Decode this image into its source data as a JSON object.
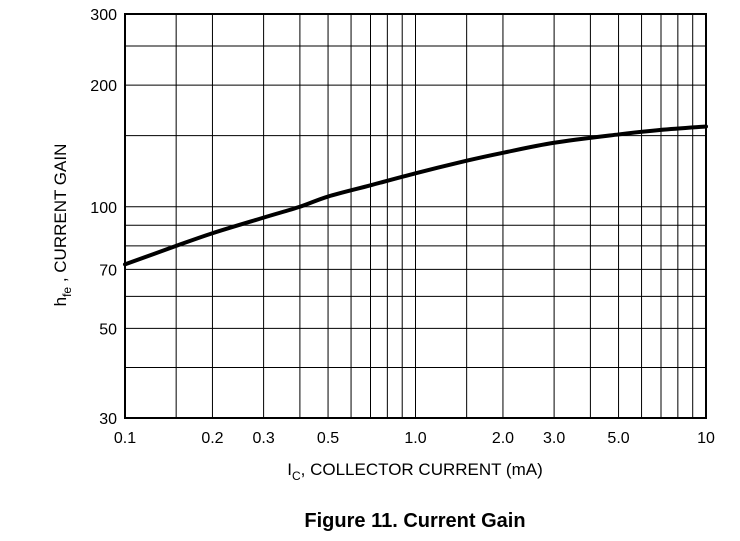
{
  "chart_data": {
    "type": "line",
    "title": "Figure 11. Current Gain",
    "xlabel": {
      "main": "I",
      "sub": "C",
      "rest": ", COLLECTOR CURRENT (mA)"
    },
    "ylabel": {
      "main": "h",
      "sub": "fe",
      "rest": " , CURRENT GAIN"
    },
    "xscale": "log",
    "yscale": "log",
    "xlim": [
      0.1,
      10
    ],
    "ylim": [
      30,
      300
    ],
    "grid": true,
    "x_ticks": [
      {
        "value": 0.1,
        "label": "0.1"
      },
      {
        "value": 0.2,
        "label": "0.2"
      },
      {
        "value": 0.3,
        "label": "0.3"
      },
      {
        "value": 0.5,
        "label": "0.5"
      },
      {
        "value": 1.0,
        "label": "1.0"
      },
      {
        "value": 2.0,
        "label": "2.0"
      },
      {
        "value": 3.0,
        "label": "3.0"
      },
      {
        "value": 5.0,
        "label": "5.0"
      },
      {
        "value": 10,
        "label": "10"
      }
    ],
    "y_ticks": [
      {
        "value": 30,
        "label": "30"
      },
      {
        "value": 50,
        "label": "50"
      },
      {
        "value": 70,
        "label": "70"
      },
      {
        "value": 100,
        "label": "100"
      },
      {
        "value": 200,
        "label": "200"
      },
      {
        "value": 300,
        "label": "300"
      }
    ],
    "x_gridlines": [
      0.1,
      0.15,
      0.2,
      0.3,
      0.4,
      0.5,
      0.6,
      0.7,
      0.8,
      0.9,
      1.0,
      1.5,
      2.0,
      3.0,
      4.0,
      5.0,
      6.0,
      7.0,
      8.0,
      9.0,
      10
    ],
    "y_gridlines": [
      30,
      40,
      50,
      60,
      70,
      80,
      90,
      100,
      150,
      200,
      250,
      300
    ],
    "series": [
      {
        "x": [
          0.1,
          0.15,
          0.2,
          0.3,
          0.4,
          0.5,
          0.7,
          1.0,
          1.5,
          2.0,
          3.0,
          5.0,
          7.0,
          10
        ],
        "y": [
          72,
          80,
          86,
          94,
          100,
          106,
          113,
          121,
          130,
          136,
          144,
          151,
          155,
          158
        ]
      }
    ]
  }
}
